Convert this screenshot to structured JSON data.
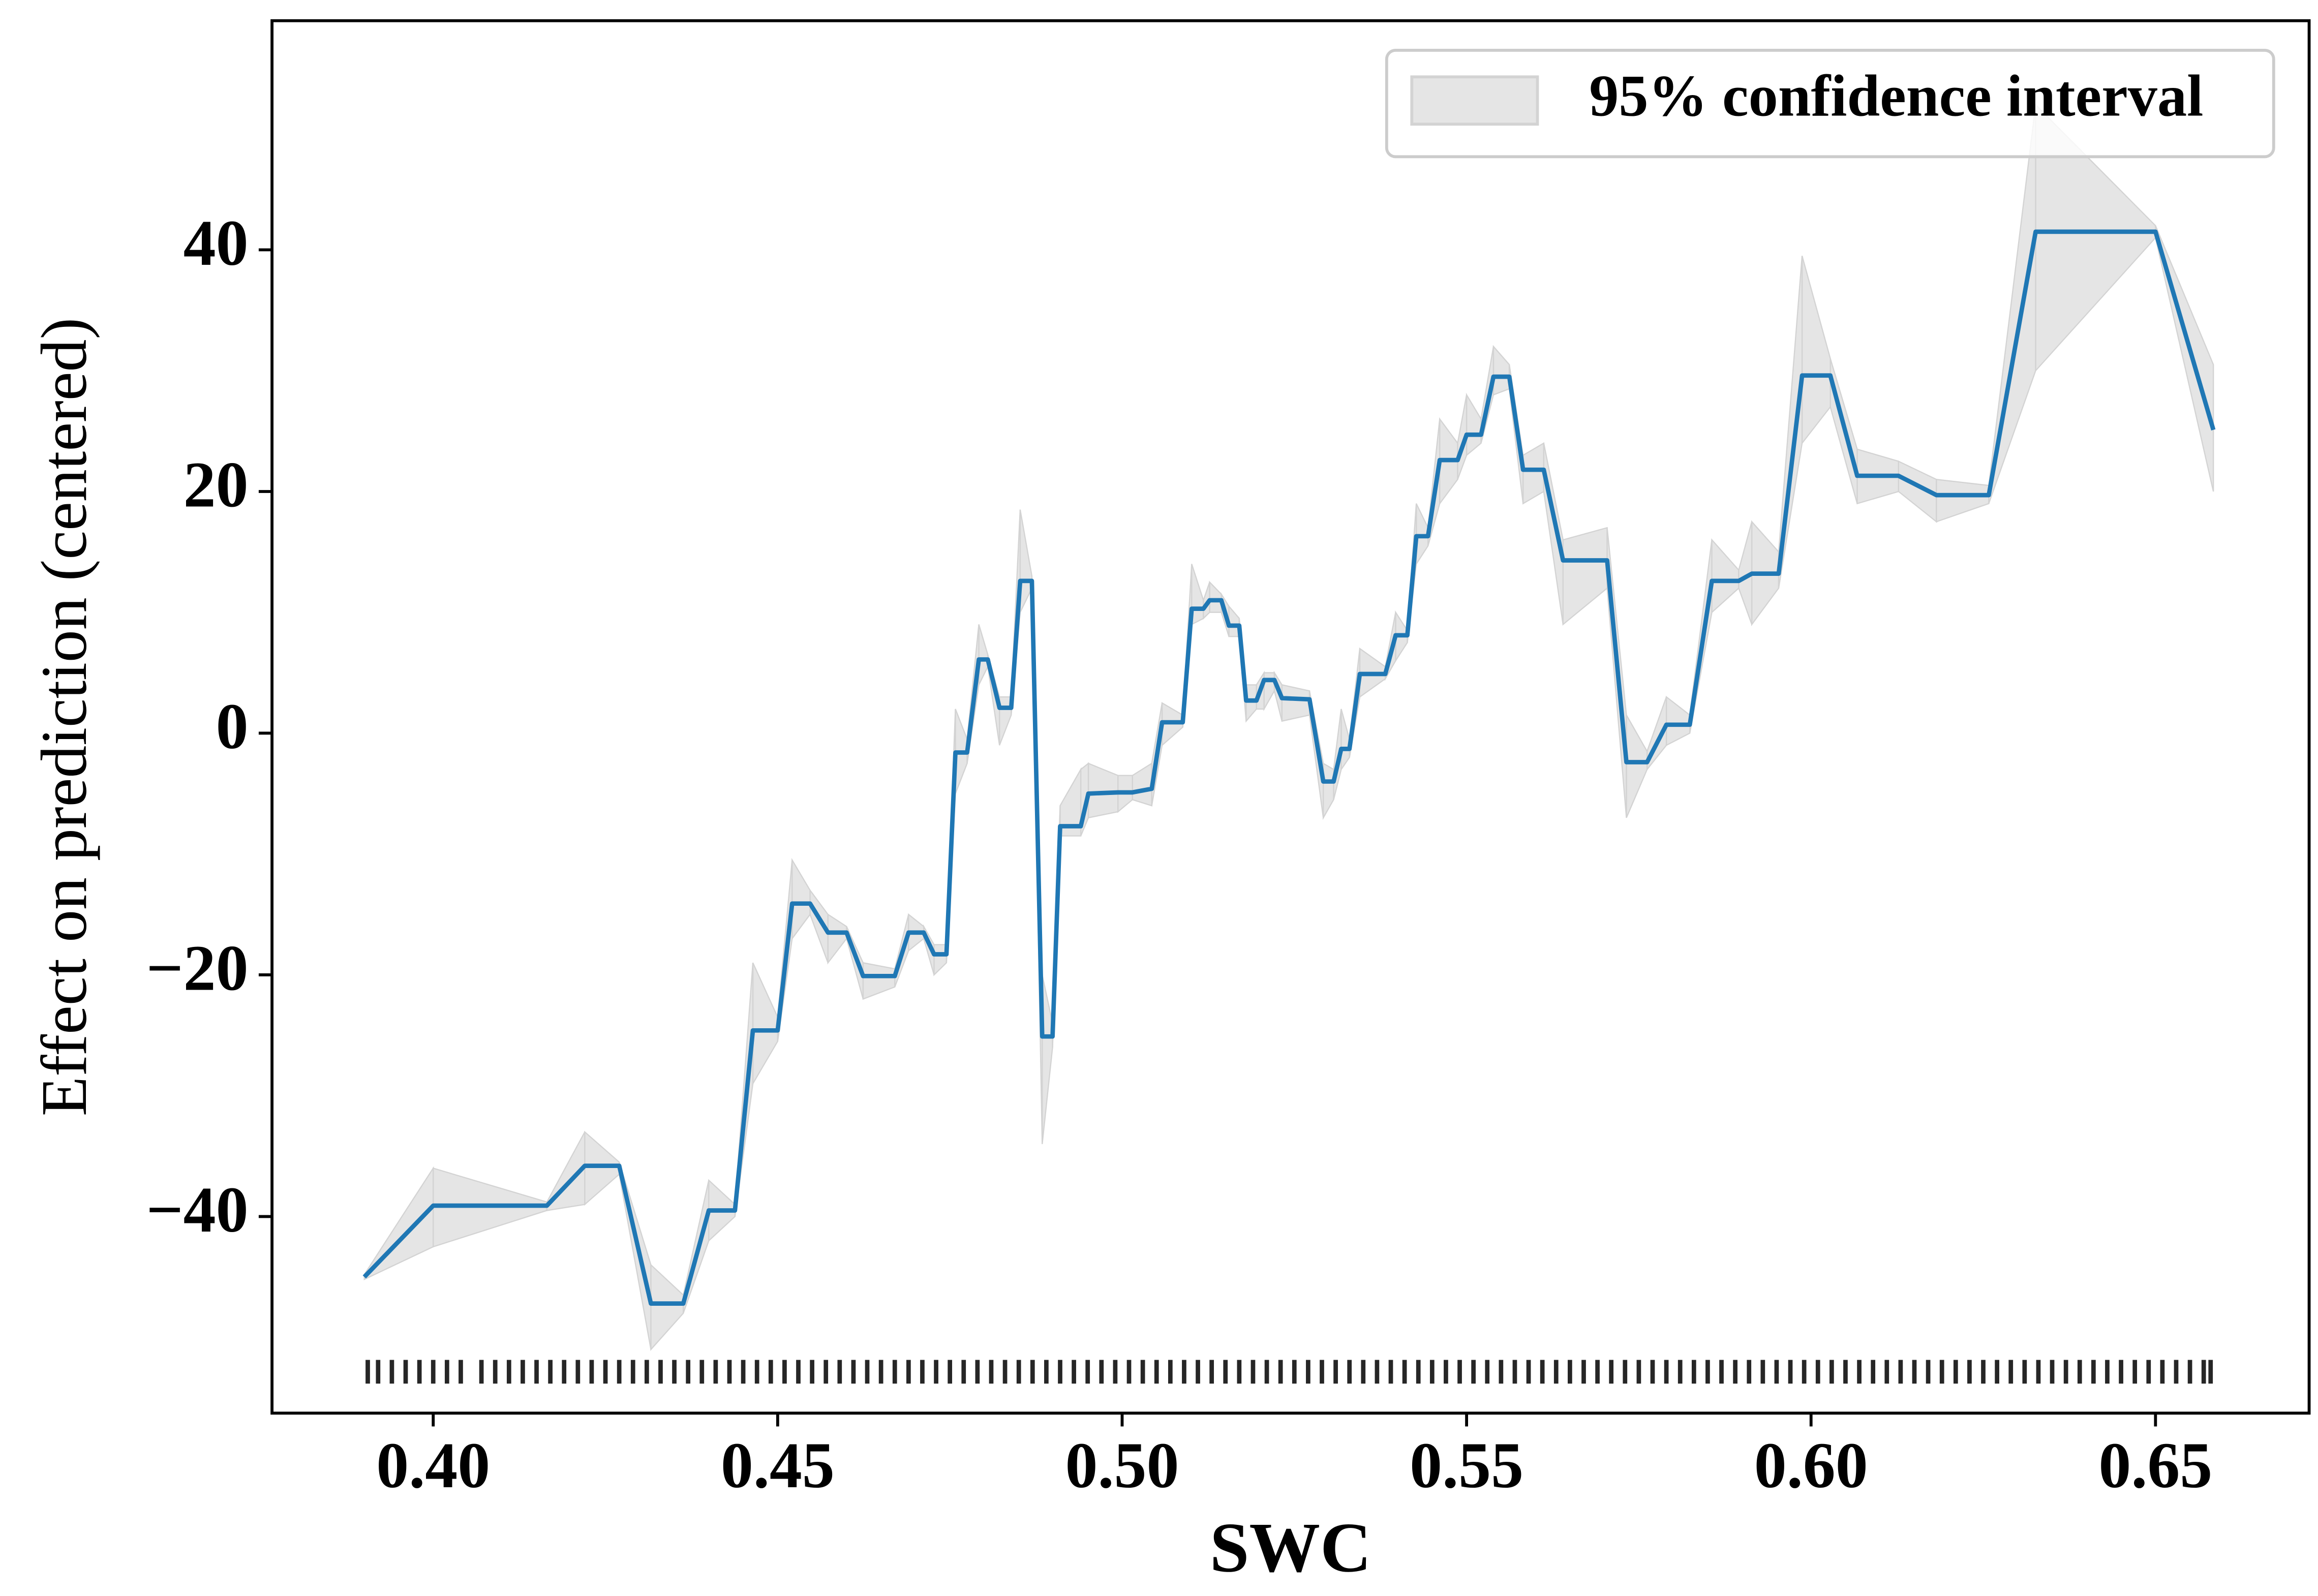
{
  "chart_data": {
    "type": "line",
    "xlabel": "SWC",
    "ylabel": "Effect on prediction (centered)",
    "color": "#1f77b4",
    "ci_color": "#d3d3d3",
    "ci_label": "95% confidence interval",
    "legend": "upper right",
    "xlim": [
      0.3766,
      0.6723
    ],
    "ylim": [
      -56.27,
      58.96
    ],
    "xticks": [
      {
        "value": 0.4,
        "label": "0.40"
      },
      {
        "value": 0.45,
        "label": "0.45"
      },
      {
        "value": 0.5,
        "label": "0.50"
      },
      {
        "value": 0.55,
        "label": "0.55"
      },
      {
        "value": 0.6,
        "label": "0.60"
      },
      {
        "value": 0.65,
        "label": "0.65"
      }
    ],
    "yticks": [
      {
        "value": -40,
        "label": "−40"
      },
      {
        "value": -20,
        "label": "−20"
      },
      0,
      20,
      40
    ],
    "x": [
      0.39,
      0.4,
      0.4165,
      0.422,
      0.427,
      0.4316,
      0.4363,
      0.44,
      0.4438,
      0.4464,
      0.45,
      0.4521,
      0.4547,
      0.4573,
      0.46,
      0.4624,
      0.467,
      0.469,
      0.4712,
      0.4727,
      0.4745,
      0.4758,
      0.4775,
      0.4792,
      0.4805,
      0.4822,
      0.4839,
      0.4852,
      0.4869,
      0.4884,
      0.4899,
      0.491,
      0.494,
      0.4951,
      0.4994,
      0.5015,
      0.5043,
      0.5058,
      0.5088,
      0.5101,
      0.5118,
      0.5127,
      0.5144,
      0.5155,
      0.517,
      0.518,
      0.5195,
      0.5206,
      0.5221,
      0.5232,
      0.5272,
      0.5292,
      0.5307,
      0.5318,
      0.533,
      0.5345,
      0.5382,
      0.5397,
      0.5414,
      0.5427,
      0.5444,
      0.5461,
      0.5487,
      0.55,
      0.5521,
      0.5539,
      0.5562,
      0.5582,
      0.5612,
      0.564,
      0.5704,
      0.5732,
      0.5762,
      0.579,
      0.5824,
      0.5856,
      0.5895,
      0.5914,
      0.5953,
      0.5987,
      0.6028,
      0.6067,
      0.6127,
      0.6182,
      0.6258,
      0.6326,
      0.65,
      0.6584
    ],
    "values": [
      -45,
      -39.1,
      -39.1,
      -35.8,
      -35.8,
      -47.2,
      -47.2,
      -39.5,
      -39.5,
      -24.6,
      -24.6,
      -14.1,
      -14.1,
      -16.5,
      -16.5,
      -20.1,
      -20.1,
      -16.5,
      -16.5,
      -18.3,
      -18.3,
      -1.6,
      -1.6,
      6.1,
      6.1,
      2.1,
      2.1,
      12.6,
      12.6,
      -25.1,
      -25.1,
      -7.7,
      -7.7,
      -5,
      -4.9,
      -4.9,
      -4.6,
      0.9,
      0.9,
      10.3,
      10.3,
      11,
      11,
      8.9,
      8.9,
      2.7,
      2.7,
      4.4,
      4.4,
      2.9,
      2.8,
      -4,
      -4,
      -1.3,
      -1.3,
      4.9,
      4.9,
      8.1,
      8.1,
      16.3,
      16.3,
      22.6,
      22.6,
      24.7,
      24.7,
      29.5,
      29.5,
      21.8,
      21.8,
      14.3,
      14.3,
      -2.4,
      -2.4,
      0.7,
      0.7,
      12.6,
      12.6,
      13.2,
      13.2,
      29.6,
      29.6,
      21.3,
      21.3,
      19.7,
      19.7,
      41.5,
      41.5,
      25.1
    ],
    "ci_lower": [
      -45.2,
      -42.5,
      -39.5,
      -39,
      -36.5,
      -51,
      -48,
      -42,
      -40,
      -29,
      -25.5,
      -17,
      -15,
      -19,
      -17,
      -22,
      -21,
      -18,
      -17,
      -20,
      -19,
      -5,
      -2.5,
      4,
      5.5,
      -1,
      1.5,
      10,
      12,
      -34,
      -26,
      -8.5,
      -8.5,
      -7,
      -6.5,
      -5.5,
      -6,
      -1,
      0.5,
      9,
      9.5,
      10,
      10,
      8,
      8,
      1,
      2,
      2,
      3.5,
      1,
      1.5,
      -7,
      -5.5,
      -3,
      -2,
      3,
      4.5,
      6,
      7.5,
      14,
      15.5,
      19,
      21,
      23,
      24,
      28,
      28.5,
      19,
      20,
      9,
      12,
      -7,
      -3,
      -1,
      0,
      10,
      12,
      9,
      12,
      24,
      27,
      19,
      20,
      17.5,
      19,
      30,
      41,
      20
    ],
    "ci_upper": [
      -44.8,
      -36,
      -38.8,
      -33,
      -35.5,
      -44,
      -46.5,
      -37,
      -39,
      -19,
      -23.5,
      -10.5,
      -13,
      -15,
      -16,
      -19,
      -19.5,
      -15,
      -16,
      -17.5,
      -17.5,
      2,
      -0.5,
      9,
      6.5,
      3,
      3,
      18.5,
      13,
      -20,
      -24,
      -6,
      -3,
      -2.5,
      -3.5,
      -3.5,
      -2.5,
      2.5,
      1.5,
      14,
      11,
      12.5,
      11.5,
      10.5,
      9.5,
      4,
      4,
      5,
      5,
      4,
      3.5,
      -2.5,
      -3,
      2,
      -0.5,
      7,
      5.5,
      10,
      8.5,
      19,
      17,
      26,
      24,
      28,
      26,
      32,
      30.5,
      23,
      24,
      16,
      17,
      1.5,
      -1.5,
      3,
      1.5,
      16,
      13.5,
      17.5,
      15,
      39.5,
      31,
      23.5,
      22.5,
      21,
      20.5,
      52,
      42,
      30.5
    ],
    "rug": [
      0.3905,
      0.392,
      0.394,
      0.396,
      0.398,
      0.4,
      0.402,
      0.404,
      0.407,
      0.409,
      0.411,
      0.413,
      0.415,
      0.417,
      0.419,
      0.421,
      0.423,
      0.425,
      0.427,
      0.429,
      0.431,
      0.433,
      0.435,
      0.437,
      0.439,
      0.441,
      0.443,
      0.445,
      0.447,
      0.449,
      0.451,
      0.453,
      0.455,
      0.457,
      0.459,
      0.461,
      0.463,
      0.465,
      0.467,
      0.469,
      0.471,
      0.473,
      0.475,
      0.477,
      0.479,
      0.481,
      0.483,
      0.485,
      0.487,
      0.489,
      0.491,
      0.493,
      0.495,
      0.497,
      0.499,
      0.501,
      0.503,
      0.505,
      0.507,
      0.509,
      0.511,
      0.513,
      0.515,
      0.517,
      0.519,
      0.521,
      0.523,
      0.525,
      0.527,
      0.529,
      0.531,
      0.533,
      0.535,
      0.537,
      0.539,
      0.541,
      0.543,
      0.545,
      0.547,
      0.549,
      0.551,
      0.553,
      0.555,
      0.557,
      0.559,
      0.561,
      0.563,
      0.565,
      0.567,
      0.569,
      0.571,
      0.573,
      0.575,
      0.577,
      0.579,
      0.581,
      0.583,
      0.585,
      0.587,
      0.589,
      0.591,
      0.593,
      0.595,
      0.597,
      0.599,
      0.601,
      0.603,
      0.605,
      0.607,
      0.609,
      0.611,
      0.613,
      0.615,
      0.617,
      0.619,
      0.621,
      0.623,
      0.625,
      0.627,
      0.629,
      0.631,
      0.633,
      0.635,
      0.637,
      0.639,
      0.641,
      0.643,
      0.645,
      0.647,
      0.649,
      0.651,
      0.653,
      0.655,
      0.657,
      0.658
    ]
  }
}
